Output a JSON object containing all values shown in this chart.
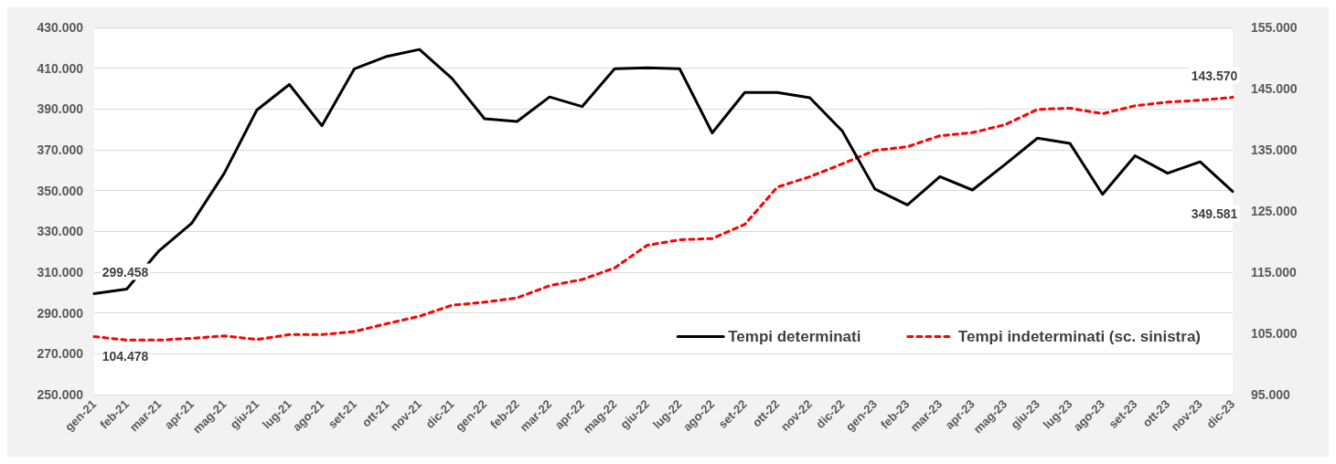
{
  "chart_data": {
    "type": "line",
    "categories": [
      "gen-21",
      "feb-21",
      "mar-21",
      "apr-21",
      "mag-21",
      "giu-21",
      "lug-21",
      "ago-21",
      "set-21",
      "ott-21",
      "nov-21",
      "dic-21",
      "gen-22",
      "feb-22",
      "mar-22",
      "apr-22",
      "mag-22",
      "giu-22",
      "lug-22",
      "ago-22",
      "set-22",
      "ott-22",
      "nov-22",
      "dic-22",
      "gen-23",
      "feb-23",
      "mar-23",
      "apr-23",
      "mag-23",
      "giu-23",
      "lug-23",
      "ago-23",
      "set-23",
      "ott-23",
      "nov-23",
      "dic-23"
    ],
    "series": [
      {
        "name": "Tempi determinati",
        "color": "#000000",
        "line_style": "solid",
        "values": [
          299458,
          301700,
          320600,
          334000,
          358500,
          389500,
          402000,
          381800,
          409700,
          415800,
          419200,
          405000,
          385200,
          383900,
          395900,
          391200,
          409700,
          410200,
          409700,
          378300,
          398100,
          398100,
          395500,
          379200,
          350800,
          343000,
          356800,
          350300,
          362800,
          375700,
          373100,
          348200,
          367100,
          358500,
          364100,
          349581
        ],
        "value_labels": [
          "299.458",
          null,
          null,
          null,
          null,
          null,
          null,
          null,
          null,
          null,
          null,
          null,
          null,
          null,
          null,
          null,
          null,
          null,
          null,
          null,
          null,
          null,
          null,
          null,
          null,
          null,
          null,
          null,
          null,
          null,
          null,
          null,
          null,
          null,
          null,
          "349.581"
        ]
      },
      {
        "name": "Tempi indeterminati (sc. sinistra)",
        "color": "#ff0000",
        "line_style": "dashed",
        "axis": "y2",
        "values": [
          104478,
          103900,
          103900,
          104200,
          104600,
          104000,
          104800,
          104800,
          105300,
          106600,
          107800,
          109600,
          110100,
          110800,
          112800,
          113800,
          115700,
          119400,
          120300,
          120500,
          122800,
          128900,
          130600,
          132700,
          134900,
          135500,
          137300,
          137800,
          139100,
          141600,
          141800,
          140900,
          142200,
          142800,
          143100,
          143570
        ],
        "value_labels": [
          "104.478",
          null,
          null,
          null,
          null,
          null,
          null,
          null,
          null,
          null,
          null,
          null,
          null,
          null,
          null,
          null,
          null,
          null,
          null,
          null,
          null,
          null,
          null,
          null,
          null,
          null,
          null,
          null,
          null,
          null,
          null,
          null,
          null,
          null,
          null,
          "143.570"
        ]
      }
    ],
    "ylim": [
      250000,
      430000
    ],
    "yticks": [
      {
        "value": 250000,
        "label": "250.000"
      },
      {
        "value": 270000,
        "label": "270.000"
      },
      {
        "value": 290000,
        "label": "290.000"
      },
      {
        "value": 310000,
        "label": "310.000"
      },
      {
        "value": 330000,
        "label": "330.000"
      },
      {
        "value": 350000,
        "label": "350.000"
      },
      {
        "value": 370000,
        "label": "370.000"
      },
      {
        "value": 390000,
        "label": "390.000"
      },
      {
        "value": 410000,
        "label": "410.000"
      },
      {
        "value": 430000,
        "label": "430.000"
      }
    ],
    "y2lim": [
      95000,
      155000
    ],
    "y2ticks": [
      {
        "value": 95000,
        "label": "95.000"
      },
      {
        "value": 105000,
        "label": "105.000"
      },
      {
        "value": 115000,
        "label": "115.000"
      },
      {
        "value": 125000,
        "label": "125.000"
      },
      {
        "value": 135000,
        "label": "135.000"
      },
      {
        "value": 145000,
        "label": "145.000"
      },
      {
        "value": 155000,
        "label": "155.000"
      }
    ],
    "grid": "y",
    "legend": "bottom right",
    "marker": "none"
  }
}
